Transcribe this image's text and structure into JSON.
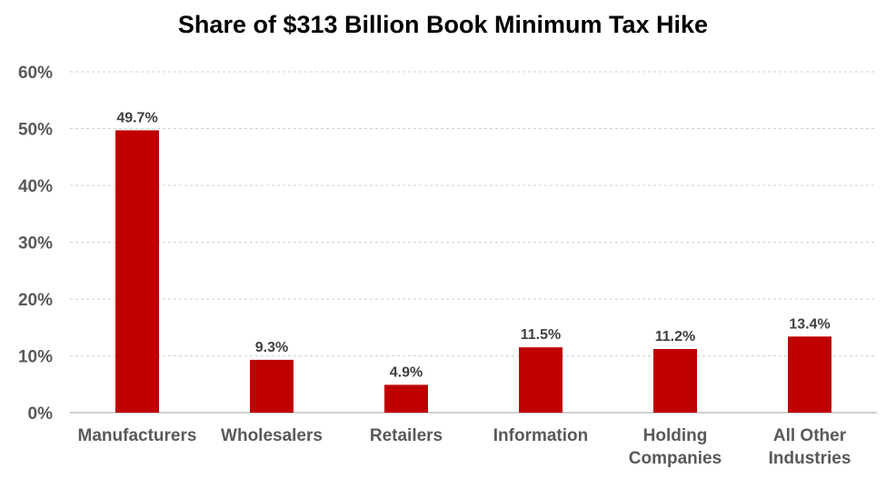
{
  "chart_data": {
    "type": "bar",
    "title": "Share of $313 Billion Book Minimum Tax Hike",
    "xlabel": "",
    "ylabel": "",
    "categories": [
      [
        "Manufacturers"
      ],
      [
        "Wholesalers"
      ],
      [
        "Retailers"
      ],
      [
        "Information"
      ],
      [
        "Holding",
        "Companies"
      ],
      [
        "All Other",
        "Industries"
      ]
    ],
    "values": [
      49.7,
      9.3,
      4.9,
      11.5,
      11.2,
      13.4
    ],
    "value_labels": [
      "49.7%",
      "9.3%",
      "4.9%",
      "11.5%",
      "11.2%",
      "13.4%"
    ],
    "ylim": [
      0,
      60
    ],
    "yticks": [
      0,
      10,
      20,
      30,
      40,
      50,
      60
    ],
    "ytick_labels": [
      "0%",
      "10%",
      "20%",
      "30%",
      "40%",
      "50%",
      "60%"
    ],
    "grid": true,
    "legend": "none",
    "bar_color": "#c00000",
    "grid_color": "#d0d0d0",
    "axis_color": "#bfbfbf",
    "tick_label_color": "#595959",
    "value_label_color": "#404040"
  }
}
